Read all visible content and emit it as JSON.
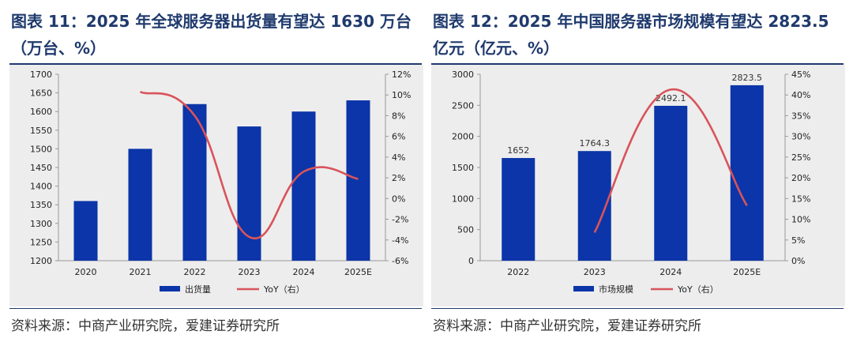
{
  "colors": {
    "title": "#1f3a6d",
    "bar": "#0b35a8",
    "line": "#d9535a",
    "panel_bg": "#ededed",
    "axis": "#999999"
  },
  "left": {
    "title": "图表 11：2025 年全球服务器出货量有望达 1630 万台（万台、%）",
    "source": "资料来源：中商产业研究院，爱建证券研究所"
  },
  "right": {
    "title": "图表 12：2025 年中国服务器市场规模有望达 2823.5 亿元（亿元、%）",
    "source": "资料来源：中商产业研究院，爱建证券研究所"
  },
  "chart_data": [
    {
      "type": "bar",
      "title": "2025 年全球服务器出货量有望达 1630 万台（万台、%）",
      "categories": [
        "2020",
        "2021",
        "2022",
        "2023",
        "2024",
        "2025E"
      ],
      "series": [
        {
          "name": "出货量",
          "type": "bar",
          "axis": "left",
          "values": [
            1360,
            1500,
            1620,
            1560,
            1600,
            1630
          ]
        },
        {
          "name": "YoY（右）",
          "type": "line",
          "axis": "right",
          "values": [
            null,
            10.3,
            8.0,
            -3.7,
            2.6,
            1.9
          ]
        }
      ],
      "ylim": [
        1200,
        1700
      ],
      "yticks": [
        1200,
        1250,
        1300,
        1350,
        1400,
        1450,
        1500,
        1550,
        1600,
        1650,
        1700
      ],
      "y2lim": [
        -6,
        12
      ],
      "y2ticks": [
        "-6%",
        "-4%",
        "-2%",
        "0%",
        "2%",
        "4%",
        "6%",
        "8%",
        "10%",
        "12%"
      ],
      "show_bar_labels": false,
      "legend": [
        "出货量",
        "YoY（右）"
      ],
      "legend_position": "bottom"
    },
    {
      "type": "bar",
      "title": "2025 年中国服务器市场规模有望达 2823.5 亿元（亿元、%）",
      "categories": [
        "2022",
        "2023",
        "2024",
        "2025E"
      ],
      "series": [
        {
          "name": "市场规模",
          "type": "bar",
          "axis": "left",
          "values": [
            1652,
            1764.3,
            2492.1,
            2823.5
          ],
          "labels": [
            "1652",
            "1764.3",
            "2492.1",
            "2823.5"
          ]
        },
        {
          "name": "YoY（右）",
          "type": "line",
          "axis": "right",
          "values": [
            null,
            6.8,
            41.3,
            13.3
          ]
        }
      ],
      "ylim": [
        0,
        3000
      ],
      "yticks": [
        0,
        500,
        1000,
        1500,
        2000,
        2500,
        3000
      ],
      "y2lim": [
        0,
        45
      ],
      "y2ticks": [
        "0%",
        "5%",
        "10%",
        "15%",
        "20%",
        "25%",
        "30%",
        "35%",
        "40%",
        "45%"
      ],
      "show_bar_labels": true,
      "legend": [
        "市场规模",
        "YoY（右）"
      ],
      "legend_position": "bottom"
    }
  ]
}
